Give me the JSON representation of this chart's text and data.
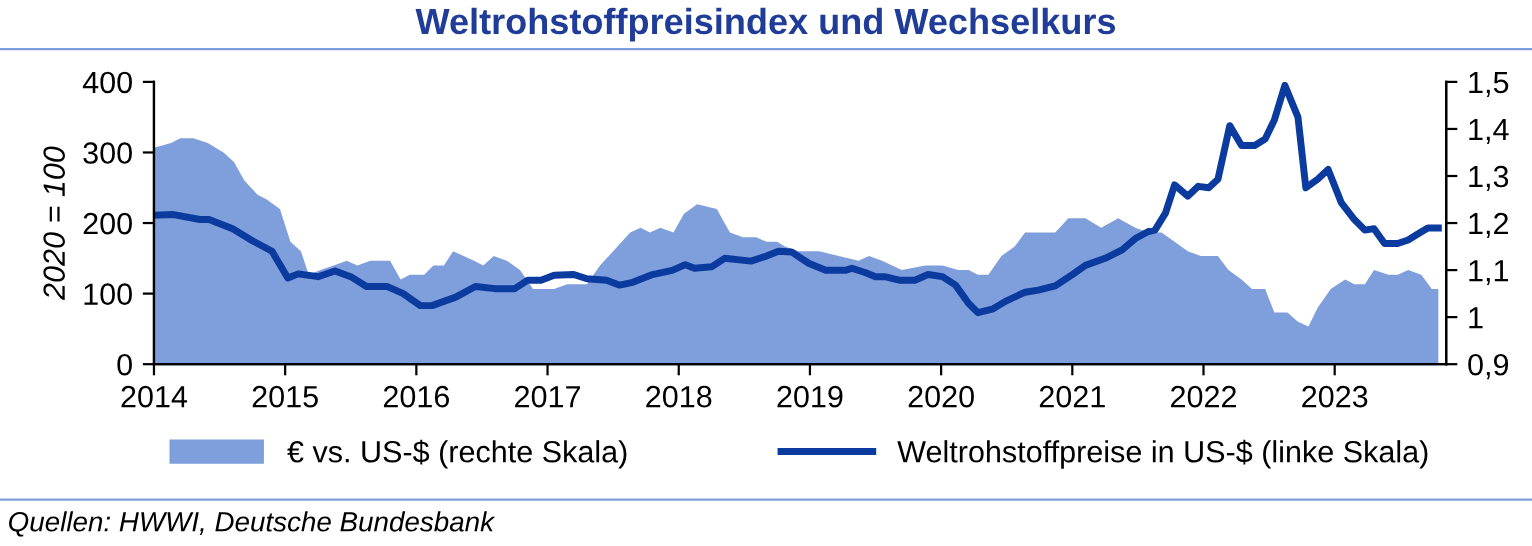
{
  "chart_data": {
    "type": "line",
    "title": "Weltrohstoffpreisindex und Wechselkurs",
    "ylabel": "2020 = 100",
    "xlim": [
      2014,
      2023.85
    ],
    "xticks": [
      2014,
      2015,
      2016,
      2017,
      2018,
      2019,
      2020,
      2021,
      2022,
      2023
    ],
    "ylim": [
      0,
      400
    ],
    "yticks": [
      0,
      100,
      200,
      300,
      400
    ],
    "y2lim": [
      0.9,
      1.5
    ],
    "y2ticks": [
      {
        "value": 0.9,
        "label": "0,9"
      },
      1,
      {
        "value": 1.1,
        "label": "1,1"
      },
      {
        "value": 1.2,
        "label": "1,2"
      },
      {
        "value": 1.3,
        "label": "1,3"
      },
      {
        "value": 1.4,
        "label": "1,4"
      },
      {
        "value": 1.5,
        "label": "1,5"
      }
    ],
    "grid": false,
    "legend": "bottom",
    "annotations": [
      "Quellen: HWWI, Deutsche Bundesbank"
    ],
    "series": [
      {
        "name": "€ vs. US-$ (rechte Skala)",
        "type": "area",
        "axis": "y2",
        "color": "#7f9fdc",
        "x": [
          2014.0,
          2014.13,
          2014.2,
          2014.3,
          2014.41,
          2014.53,
          2014.61,
          2014.69,
          2014.79,
          2014.86,
          2014.96,
          2015.04,
          2015.12,
          2015.18,
          2015.27,
          2015.37,
          2015.47,
          2015.55,
          2015.65,
          2015.73,
          2015.8,
          2015.88,
          2015.95,
          2016.06,
          2016.13,
          2016.21,
          2016.28,
          2016.36,
          2016.44,
          2016.51,
          2016.59,
          2016.69,
          2016.79,
          2016.89,
          2016.97,
          2017.05,
          2017.15,
          2017.3,
          2017.4,
          2017.5,
          2017.63,
          2017.71,
          2017.78,
          2017.86,
          2017.96,
          2018.04,
          2018.14,
          2018.29,
          2018.39,
          2018.49,
          2018.59,
          2018.67,
          2018.75,
          2018.81,
          2018.91,
          2019.07,
          2019.22,
          2019.37,
          2019.45,
          2019.55,
          2019.7,
          2019.88,
          2020.01,
          2020.13,
          2020.21,
          2020.28,
          2020.36,
          2020.46,
          2020.56,
          2020.64,
          2020.74,
          2020.87,
          2020.97,
          2021.1,
          2021.22,
          2021.35,
          2021.48,
          2021.58,
          2021.68,
          2021.78,
          2021.88,
          2021.98,
          2022.11,
          2022.19,
          2022.29,
          2022.37,
          2022.47,
          2022.54,
          2022.64,
          2022.72,
          2022.8,
          2022.87,
          2022.97,
          2023.08,
          2023.15,
          2023.23,
          2023.3,
          2023.41,
          2023.48,
          2023.56,
          2023.66,
          2023.74,
          2023.79
        ],
        "values": [
          1.36,
          1.37,
          1.38,
          1.38,
          1.37,
          1.35,
          1.33,
          1.29,
          1.26,
          1.25,
          1.23,
          1.16,
          1.14,
          1.09,
          1.1,
          1.11,
          1.12,
          1.11,
          1.12,
          1.12,
          1.12,
          1.08,
          1.09,
          1.09,
          1.11,
          1.11,
          1.14,
          1.13,
          1.12,
          1.11,
          1.13,
          1.12,
          1.1,
          1.06,
          1.06,
          1.06,
          1.07,
          1.07,
          1.11,
          1.14,
          1.18,
          1.19,
          1.18,
          1.19,
          1.18,
          1.22,
          1.24,
          1.23,
          1.18,
          1.17,
          1.17,
          1.16,
          1.16,
          1.15,
          1.14,
          1.14,
          1.13,
          1.12,
          1.13,
          1.12,
          1.1,
          1.11,
          1.11,
          1.1,
          1.1,
          1.09,
          1.09,
          1.13,
          1.15,
          1.18,
          1.18,
          1.18,
          1.21,
          1.21,
          1.19,
          1.21,
          1.19,
          1.18,
          1.18,
          1.16,
          1.14,
          1.13,
          1.13,
          1.1,
          1.08,
          1.06,
          1.06,
          1.01,
          1.01,
          0.99,
          0.98,
          1.02,
          1.06,
          1.08,
          1.07,
          1.07,
          1.1,
          1.09,
          1.09,
          1.1,
          1.09,
          1.06,
          1.06
        ]
      },
      {
        "name": "Weltrohstoffpreise in US-$ (linke Skala)",
        "color": "#0b3b9e",
        "line_style": "solid",
        "marker": "none",
        "x": [
          2014.0,
          2014.15,
          2014.35,
          2014.42,
          2014.6,
          2014.75,
          2014.9,
          2015.02,
          2015.1,
          2015.25,
          2015.38,
          2015.5,
          2015.62,
          2015.78,
          2015.9,
          2016.03,
          2016.12,
          2016.3,
          2016.45,
          2016.6,
          2016.75,
          2016.85,
          2016.95,
          2017.05,
          2017.2,
          2017.3,
          2017.45,
          2017.55,
          2017.65,
          2017.8,
          2017.95,
          2018.05,
          2018.12,
          2018.25,
          2018.35,
          2018.55,
          2018.65,
          2018.76,
          2018.86,
          2018.99,
          2019.12,
          2019.27,
          2019.32,
          2019.42,
          2019.5,
          2019.57,
          2019.68,
          2019.8,
          2019.9,
          2020.01,
          2020.11,
          2020.21,
          2020.28,
          2020.39,
          2020.49,
          2020.64,
          2020.74,
          2020.87,
          2021.0,
          2021.1,
          2021.25,
          2021.38,
          2021.48,
          2021.58,
          2021.63,
          2021.71,
          2021.78,
          2021.88,
          2021.96,
          2022.04,
          2022.11,
          2022.2,
          2022.29,
          2022.39,
          2022.47,
          2022.54,
          2022.62,
          2022.72,
          2022.78,
          2022.87,
          2022.95,
          2023.05,
          2023.15,
          2023.23,
          2023.3,
          2023.38,
          2023.48,
          2023.56,
          2023.63,
          2023.71,
          2023.79
        ],
        "values": [
          211,
          212,
          205,
          205,
          192,
          175,
          160,
          122,
          128,
          124,
          132,
          124,
          110,
          110,
          100,
          83,
          83,
          95,
          110,
          107,
          107,
          119,
          119,
          126,
          127,
          121,
          119,
          112,
          116,
          127,
          133,
          141,
          136,
          138,
          150,
          146,
          152,
          160,
          159,
          143,
          133,
          133,
          136,
          130,
          124,
          124,
          119,
          119,
          127,
          124,
          112,
          86,
          73,
          78,
          89,
          102,
          105,
          111,
          127,
          140,
          150,
          162,
          178,
          188,
          190,
          214,
          254,
          238,
          252,
          250,
          262,
          338,
          310,
          310,
          319,
          346,
          395,
          350,
          250,
          262,
          276,
          229,
          205,
          190,
          192,
          171,
          171,
          176,
          184,
          193,
          193
        ]
      }
    ]
  }
}
